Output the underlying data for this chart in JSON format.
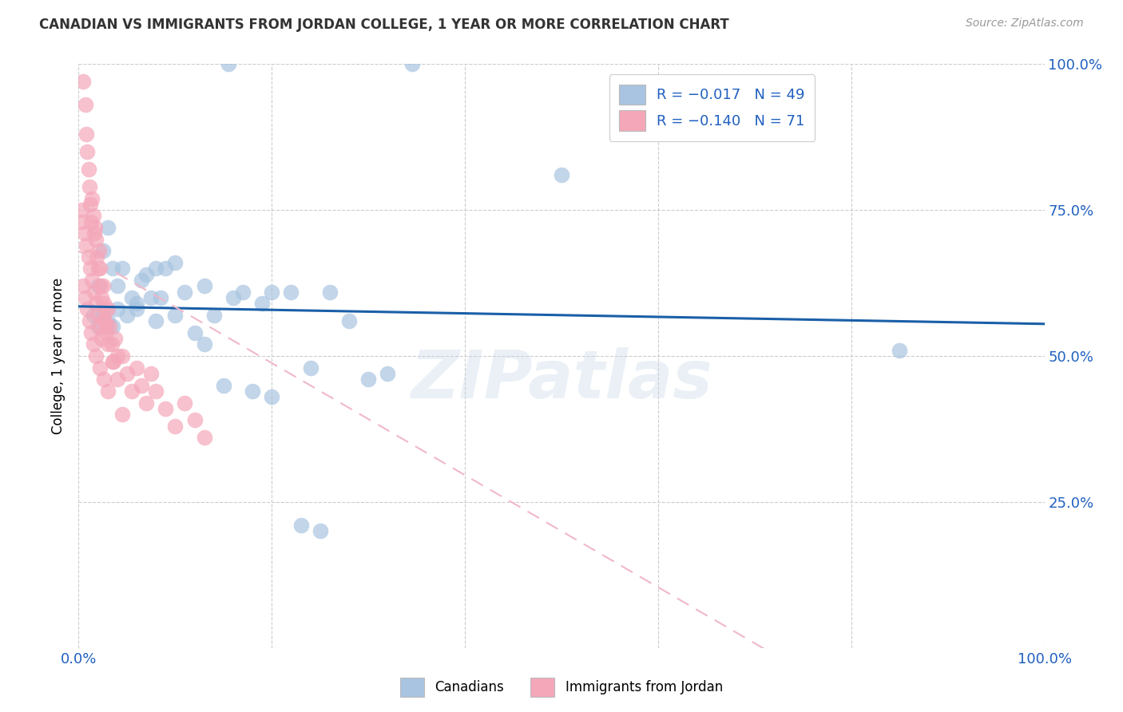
{
  "title": "CANADIAN VS IMMIGRANTS FROM JORDAN COLLEGE, 1 YEAR OR MORE CORRELATION CHART",
  "source": "Source: ZipAtlas.com",
  "ylabel": "College, 1 year or more",
  "legend_label_canadians": "Canadians",
  "legend_label_jordan": "Immigrants from Jordan",
  "blue_color": "#a8c4e0",
  "pink_color": "#f4a7b9",
  "blue_edge_color": "#7aadd4",
  "pink_edge_color": "#e888a8",
  "blue_line_color": "#1a5fa8",
  "pink_line_color": "#e8b4c0",
  "text_blue": "#2060c0",
  "blue_R": -0.017,
  "blue_N": 49,
  "pink_R": -0.14,
  "pink_N": 71,
  "blue_x": [
    0.155,
    0.345,
    0.5,
    0.85,
    0.02,
    0.025,
    0.03,
    0.035,
    0.04,
    0.045,
    0.05,
    0.055,
    0.06,
    0.065,
    0.07,
    0.075,
    0.08,
    0.085,
    0.09,
    0.1,
    0.11,
    0.12,
    0.13,
    0.14,
    0.16,
    0.17,
    0.19,
    0.2,
    0.22,
    0.24,
    0.26,
    0.28,
    0.3,
    0.32,
    0.015,
    0.02,
    0.025,
    0.03,
    0.035,
    0.04,
    0.06,
    0.08,
    0.1,
    0.13,
    0.15,
    0.18,
    0.2,
    0.23,
    0.25
  ],
  "blue_y": [
    1.0,
    1.0,
    0.81,
    0.51,
    0.62,
    0.68,
    0.72,
    0.65,
    0.62,
    0.65,
    0.57,
    0.6,
    0.58,
    0.63,
    0.64,
    0.6,
    0.56,
    0.6,
    0.65,
    0.57,
    0.61,
    0.54,
    0.52,
    0.57,
    0.6,
    0.61,
    0.59,
    0.61,
    0.61,
    0.48,
    0.61,
    0.56,
    0.46,
    0.47,
    0.57,
    0.55,
    0.57,
    0.56,
    0.55,
    0.58,
    0.59,
    0.65,
    0.66,
    0.62,
    0.45,
    0.44,
    0.43,
    0.21,
    0.2
  ],
  "pink_x": [
    0.005,
    0.007,
    0.008,
    0.009,
    0.01,
    0.011,
    0.012,
    0.013,
    0.014,
    0.015,
    0.016,
    0.017,
    0.018,
    0.019,
    0.02,
    0.021,
    0.022,
    0.023,
    0.024,
    0.025,
    0.026,
    0.027,
    0.028,
    0.029,
    0.03,
    0.032,
    0.034,
    0.036,
    0.038,
    0.04,
    0.003,
    0.004,
    0.006,
    0.008,
    0.01,
    0.012,
    0.014,
    0.016,
    0.018,
    0.02,
    0.022,
    0.024,
    0.026,
    0.028,
    0.03,
    0.035,
    0.04,
    0.045,
    0.05,
    0.055,
    0.06,
    0.065,
    0.07,
    0.075,
    0.08,
    0.09,
    0.1,
    0.11,
    0.12,
    0.13,
    0.005,
    0.007,
    0.009,
    0.011,
    0.013,
    0.015,
    0.018,
    0.022,
    0.026,
    0.03,
    0.045
  ],
  "pink_y": [
    0.97,
    0.93,
    0.88,
    0.85,
    0.82,
    0.79,
    0.76,
    0.73,
    0.77,
    0.74,
    0.71,
    0.72,
    0.7,
    0.67,
    0.65,
    0.68,
    0.65,
    0.62,
    0.6,
    0.62,
    0.59,
    0.56,
    0.58,
    0.55,
    0.58,
    0.55,
    0.52,
    0.49,
    0.53,
    0.5,
    0.75,
    0.73,
    0.71,
    0.69,
    0.67,
    0.65,
    0.63,
    0.61,
    0.59,
    0.57,
    0.55,
    0.53,
    0.56,
    0.54,
    0.52,
    0.49,
    0.46,
    0.5,
    0.47,
    0.44,
    0.48,
    0.45,
    0.42,
    0.47,
    0.44,
    0.41,
    0.38,
    0.42,
    0.39,
    0.36,
    0.62,
    0.6,
    0.58,
    0.56,
    0.54,
    0.52,
    0.5,
    0.48,
    0.46,
    0.44,
    0.4
  ],
  "watermark": "ZIPatlas",
  "figsize": [
    14.06,
    8.92
  ],
  "dpi": 100
}
